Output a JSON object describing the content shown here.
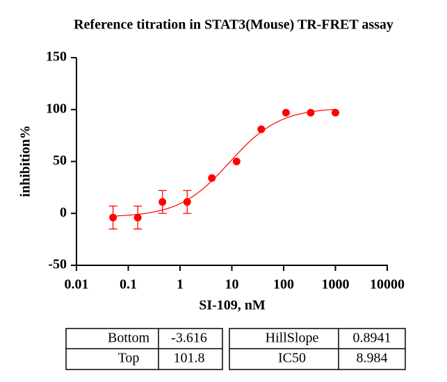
{
  "chart_data": {
    "type": "scatter",
    "title": "Reference titration in STAT3(Mouse) TR-FRET assay",
    "x_label": "SI-109, nM",
    "y_label": "inhibition%",
    "x": [
      0.0508,
      0.1524,
      0.4572,
      1.372,
      4.115,
      12.35,
      37.04,
      111.1,
      333.3,
      1000
    ],
    "series": [
      {
        "color": "#ff0000",
        "values": [
          -4,
          -4,
          11,
          11,
          34,
          50,
          81,
          97,
          97,
          97
        ],
        "errors": [
          11,
          11,
          11,
          11,
          null,
          null,
          null,
          null,
          null,
          null
        ]
      }
    ],
    "xscale": "log",
    "xlim": [
      0.01,
      10000
    ],
    "xticks": [
      0.01,
      0.1,
      1,
      10,
      100,
      1000,
      10000
    ],
    "ylim": [
      -50,
      150
    ],
    "yticks": [
      -50,
      0,
      50,
      100,
      150
    ]
  },
  "fit_table": {
    "rows": [
      [
        "Bottom",
        "-3.616",
        "HillSlope",
        "0.8941"
      ],
      [
        "Top",
        "101.8",
        "IC50",
        "8.984"
      ]
    ]
  }
}
